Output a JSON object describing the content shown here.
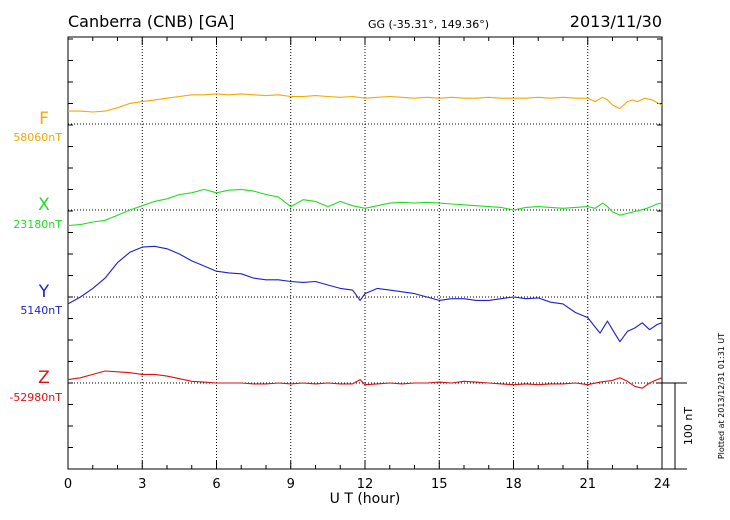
{
  "header": {
    "station": "Canberra (CNB)  [GA]",
    "coords": "GG (-35.31°, 149.36°)",
    "date": "2013/11/30"
  },
  "footer": {
    "plotted": "Plotted at 2013/12/31 01:31 UT"
  },
  "chart_data": {
    "type": "line",
    "title": "Canberra (CNB)  [GA]",
    "xlabel": "U T (hour)",
    "xlim": [
      0,
      24
    ],
    "xticks": [
      "0",
      "3",
      "6",
      "9",
      "12",
      "15",
      "18",
      "21",
      "24"
    ],
    "scale_label": "100 nT",
    "scale_nT": 100,
    "grid": true,
    "series": [
      {
        "name": "F",
        "baseline_label": "58060nT",
        "color": "#f5a800",
        "x": [
          0,
          0.5,
          1,
          1.5,
          2,
          2.5,
          3,
          3.5,
          4,
          4.5,
          5,
          5.5,
          6,
          6.5,
          7,
          7.5,
          8,
          8.5,
          9,
          9.5,
          10,
          10.5,
          11,
          11.5,
          12,
          12.5,
          13,
          13.5,
          14,
          14.5,
          15,
          15.5,
          16,
          16.5,
          17,
          17.5,
          18,
          18.5,
          19,
          19.5,
          20,
          20.5,
          21,
          21.3,
          21.6,
          21.8,
          22,
          22.3,
          22.6,
          22.8,
          23,
          23.3,
          23.6,
          24
        ],
        "values": [
          15,
          15,
          14,
          15,
          19,
          24,
          26,
          28,
          30,
          32,
          34,
          34,
          35,
          34,
          35,
          34,
          33,
          34,
          32,
          32,
          33,
          32,
          31,
          32,
          30,
          31,
          32,
          31,
          30,
          31,
          30,
          31,
          30,
          30,
          31,
          30,
          30,
          30,
          31,
          30,
          31,
          30,
          30,
          26,
          31,
          28,
          22,
          18,
          26,
          28,
          26,
          30,
          28,
          22
        ]
      },
      {
        "name": "X",
        "baseline_label": "23180nT",
        "color": "#22dd22",
        "x": [
          0,
          0.5,
          1,
          1.5,
          2,
          2.5,
          3,
          3.5,
          4,
          4.5,
          5,
          5.5,
          6,
          6.5,
          7,
          7.5,
          8,
          8.5,
          9,
          9.5,
          10,
          10.5,
          11,
          11.5,
          12,
          12.5,
          13,
          13.5,
          14,
          14.5,
          15,
          15.5,
          16,
          16.5,
          17,
          17.5,
          18,
          18.5,
          19,
          19.5,
          20,
          20.5,
          21,
          21.3,
          21.6,
          21.8,
          22,
          22.3,
          22.6,
          23,
          23.4,
          23.8,
          24
        ],
        "values": [
          -18,
          -17,
          -14,
          -12,
          -6,
          0,
          5,
          10,
          13,
          18,
          20,
          24,
          20,
          23,
          24,
          22,
          18,
          15,
          4,
          12,
          10,
          4,
          10,
          5,
          2,
          5,
          8,
          9,
          8,
          9,
          8,
          7,
          6,
          5,
          4,
          3,
          0,
          3,
          4,
          3,
          2,
          3,
          4,
          2,
          8,
          4,
          -2,
          -6,
          -4,
          -1,
          2,
          7,
          8
        ]
      },
      {
        "name": "Y",
        "baseline_label": "5140nT",
        "color": "#1f1fcc",
        "x": [
          0,
          0.5,
          1,
          1.5,
          2,
          2.5,
          3,
          3.5,
          4,
          4.5,
          5,
          5.5,
          6,
          6.5,
          7,
          7.5,
          8,
          8.5,
          9,
          9.5,
          10,
          10.5,
          11,
          11.5,
          11.8,
          12,
          12.5,
          13,
          13.5,
          14,
          14.5,
          15,
          15.5,
          16,
          16.5,
          17,
          17.5,
          18,
          18.5,
          19,
          19.5,
          20,
          20.5,
          21,
          21.3,
          21.5,
          21.8,
          22,
          22.3,
          22.6,
          22.9,
          23.2,
          23.5,
          23.8,
          24
        ],
        "values": [
          -8,
          0,
          10,
          22,
          40,
          52,
          58,
          59,
          56,
          50,
          42,
          36,
          30,
          28,
          27,
          22,
          20,
          20,
          18,
          17,
          18,
          14,
          10,
          8,
          -4,
          4,
          10,
          8,
          6,
          4,
          0,
          -4,
          -2,
          -2,
          -4,
          -4,
          -2,
          0,
          -2,
          -1,
          -6,
          -8,
          -18,
          -24,
          -35,
          -42,
          -28,
          -38,
          -52,
          -40,
          -36,
          -30,
          -38,
          -32,
          -30
        ]
      },
      {
        "name": "Z",
        "baseline_label": "-52980nT",
        "color": "#dd1111",
        "x": [
          0,
          0.5,
          1,
          1.5,
          2,
          2.5,
          3,
          3.5,
          4,
          4.5,
          5,
          5.5,
          6,
          6.5,
          7,
          7.5,
          8,
          8.5,
          9,
          9.5,
          10,
          10.5,
          11,
          11.5,
          11.8,
          12,
          12.5,
          13,
          13.5,
          14,
          14.5,
          15,
          15.5,
          16,
          16.5,
          17,
          17.5,
          18,
          18.5,
          19,
          19.5,
          20,
          20.5,
          21,
          21.5,
          22,
          22.3,
          22.6,
          22.9,
          23.2,
          23.5,
          23.8,
          24
        ],
        "values": [
          4,
          6,
          10,
          14,
          13,
          12,
          10,
          10,
          8,
          5,
          2,
          1,
          0,
          0,
          0,
          -1,
          -1,
          0,
          -1,
          0,
          -1,
          0,
          -1,
          -1,
          4,
          -2,
          -1,
          0,
          -1,
          0,
          0,
          1,
          0,
          2,
          1,
          0,
          -1,
          -2,
          -1,
          -2,
          -1,
          -1,
          0,
          -2,
          1,
          3,
          6,
          2,
          -4,
          -6,
          0,
          4,
          6
        ]
      }
    ]
  }
}
